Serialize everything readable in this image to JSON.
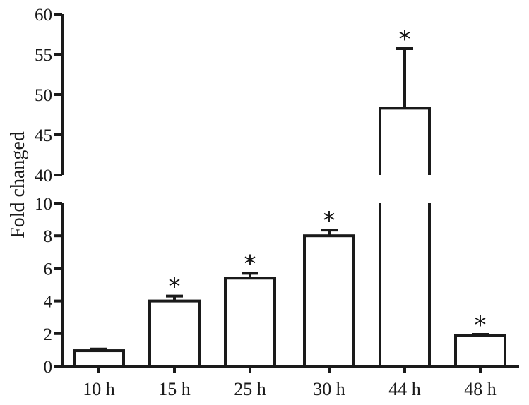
{
  "chart_data": {
    "type": "bar",
    "ylabel": "Fold changed",
    "xlabel": "",
    "title": "",
    "categories": [
      "10 h",
      "15 h",
      "25 h",
      "30 h",
      "44 h",
      "48 h"
    ],
    "values": [
      0.95,
      4.0,
      5.4,
      8.0,
      48.3,
      1.9
    ],
    "error_upper": [
      1.05,
      4.3,
      5.7,
      8.35,
      55.7,
      1.95
    ],
    "significance_marks": [
      "",
      "*",
      "*",
      "*",
      "*",
      "*"
    ],
    "y_axis_break": {
      "lower_range": [
        0,
        10
      ],
      "upper_range": [
        40,
        60
      ]
    },
    "ytick_labels_lower": [
      "0",
      "2",
      "4",
      "6",
      "8",
      "10"
    ],
    "ytick_labels_upper": [
      "40",
      "45",
      "50",
      "55",
      "60"
    ],
    "bar_fill": "#ffffff",
    "bar_stroke": "#1a1a1a",
    "grid": false,
    "legend": "none"
  }
}
